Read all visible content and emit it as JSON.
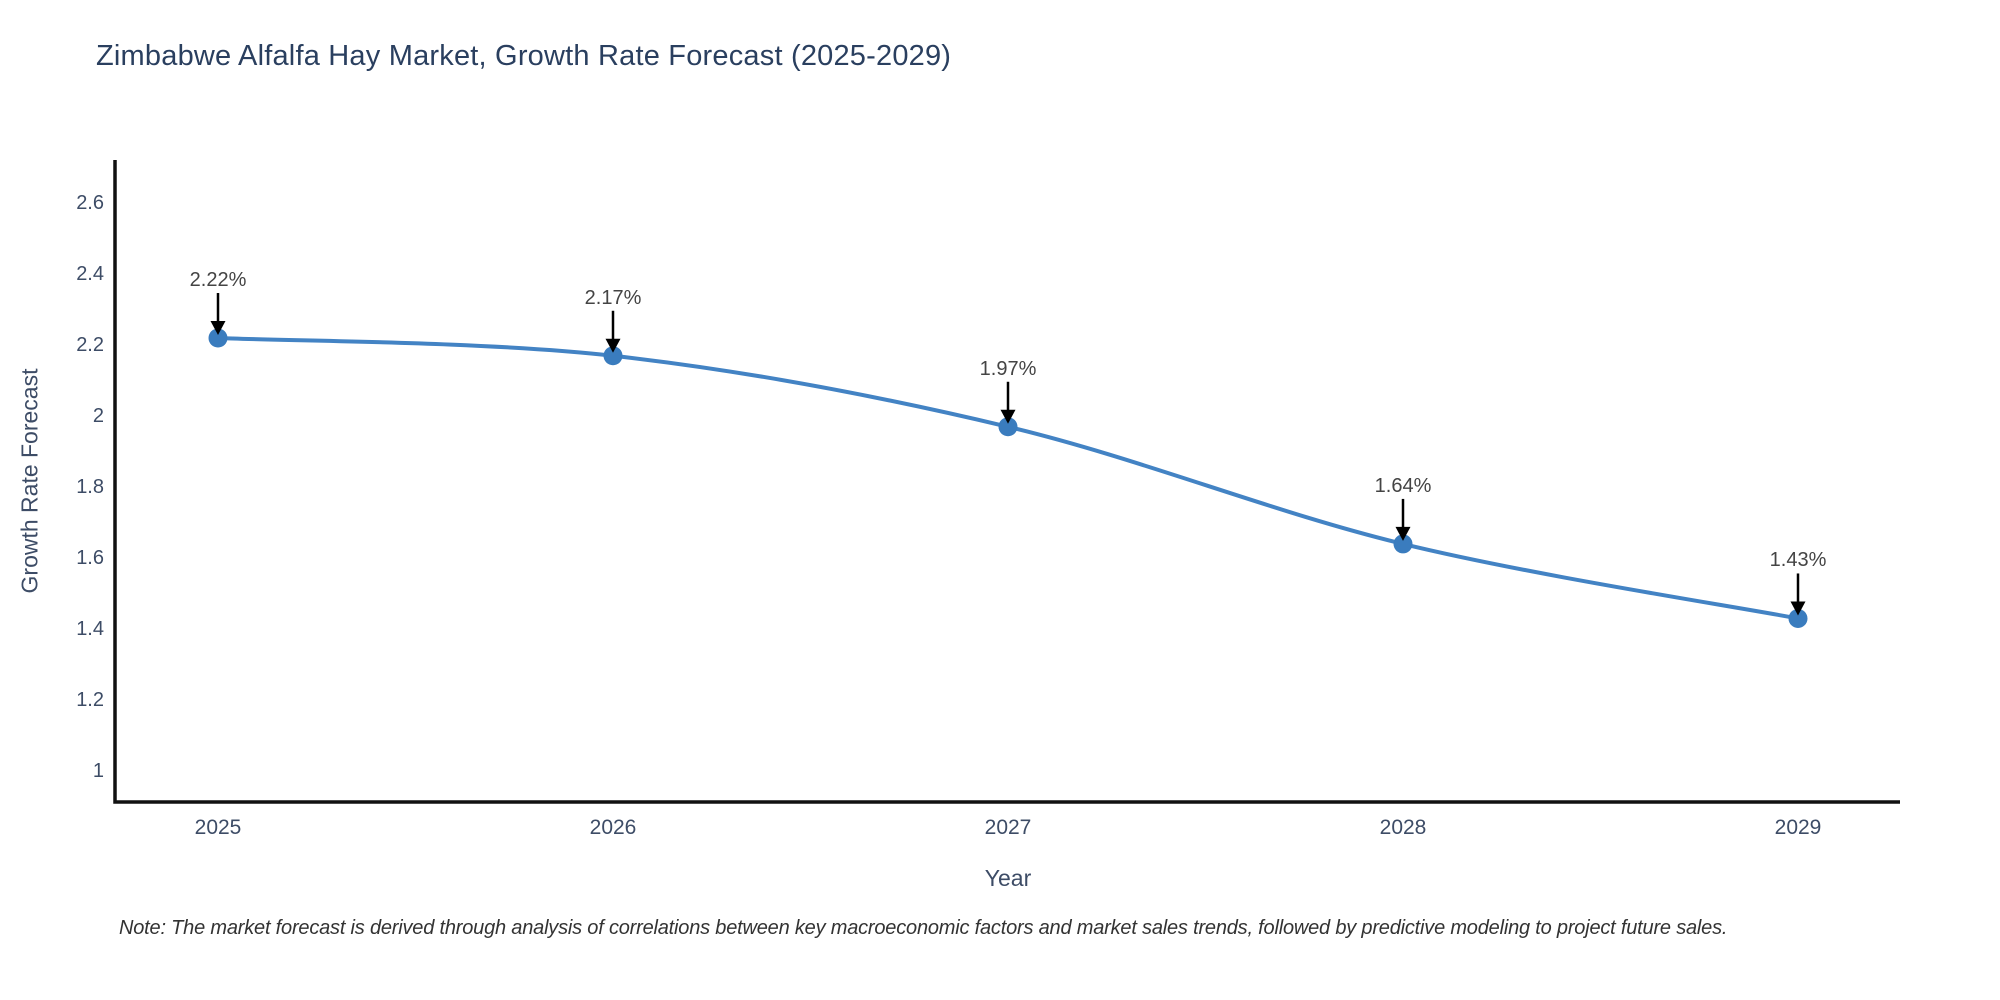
{
  "title": "Zimbabwe Alfalfa Hay Market, Growth Rate Forecast (2025-2029)",
  "note": "Note: The market forecast is derived through analysis of correlations between key macroeconomic factors and market sales trends, followed by predictive modeling to project future sales.",
  "chart_data": {
    "type": "line",
    "line_shape": "spline",
    "title": "Zimbabwe Alfalfa Hay Market, Growth Rate Forecast (2025-2029)",
    "xlabel": "Year",
    "ylabel": "Growth Rate Forecast",
    "x": [
      2025,
      2026,
      2027,
      2028,
      2029
    ],
    "x_tick_labels": [
      "2025",
      "2026",
      "2027",
      "2028",
      "2029"
    ],
    "values": [
      2.22,
      2.17,
      1.97,
      1.64,
      1.43
    ],
    "point_labels": [
      "2.22%",
      "2.17%",
      "1.97%",
      "1.64%",
      "1.43%"
    ],
    "y_ticks": [
      1,
      1.2,
      1.4,
      1.6,
      1.8,
      2,
      2.2,
      2.4,
      2.6
    ],
    "y_tick_labels": [
      "1",
      "1.2",
      "1.4",
      "1.6",
      "1.8",
      "2",
      "2.2",
      "2.4",
      "2.6"
    ],
    "ylim": [
      0.913,
      2.72
    ],
    "xlim": [
      2024.74,
      2029.26
    ],
    "grid": false,
    "legend_position": "none",
    "annotations_have_arrows": true
  },
  "colors": {
    "line": "#4383c4",
    "marker": "#3a7cbe",
    "axis_line": "#111111",
    "arrow": "#000000",
    "title_text": "#2a3f5f",
    "tick_text": "#3d4c66",
    "annotation_text": "#444444",
    "note_text": "#333333",
    "background": "#ffffff"
  }
}
